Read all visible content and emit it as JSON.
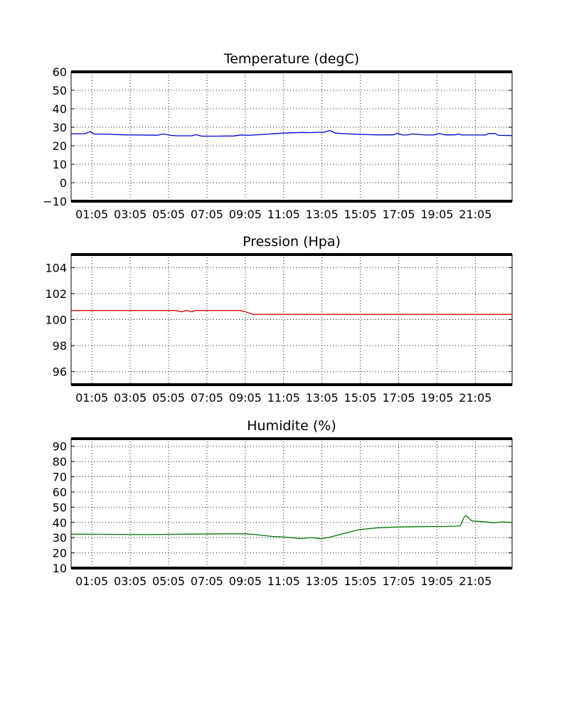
{
  "chart_data": [
    {
      "type": "line",
      "title": "Temperature (degC)",
      "ylim": [
        -10,
        60
      ],
      "yticks": [
        -10,
        0,
        10,
        20,
        30,
        40,
        50,
        60
      ],
      "ytick_labels": [
        "−10",
        "0",
        "10",
        "20",
        "30",
        "40",
        "50",
        "60"
      ],
      "xlim": [
        0,
        23
      ],
      "xticks": [
        1.083,
        3.083,
        5.083,
        7.083,
        9.083,
        11.083,
        13.083,
        15.083,
        17.083,
        19.083,
        21.083
      ],
      "xtick_labels": [
        "01:05",
        "03:05",
        "05:05",
        "07:05",
        "09:05",
        "11:05",
        "13:05",
        "15:05",
        "17:05",
        "19:05",
        "21:05"
      ],
      "grid": true,
      "color": "#0000cc",
      "series": [
        {
          "x": [
            0,
            0.7,
            1.0,
            1.2,
            1.8,
            2.8,
            3.5,
            4.5,
            4.8,
            5.2,
            5.5,
            5.8,
            6.3,
            6.5,
            6.8,
            7.5,
            8.5,
            8.9,
            9.2,
            10,
            11,
            12,
            12.5,
            13.2,
            13.5,
            13.8,
            14.5,
            15.5,
            16,
            16.5,
            16.8,
            17.0,
            17.3,
            17.5,
            17.8,
            18.5,
            18.9,
            19.2,
            19.5,
            20.0,
            20.2,
            20.4,
            21,
            21.6,
            21.8,
            22.1,
            22.3,
            23
          ],
          "y": [
            26.5,
            26.5,
            27.6,
            26.3,
            26.3,
            25.9,
            25.8,
            25.7,
            26.4,
            25.6,
            25.4,
            25.4,
            25.4,
            26.0,
            25.2,
            25.2,
            25.3,
            25.9,
            25.6,
            26.1,
            26.8,
            27.2,
            27.1,
            27.3,
            28.3,
            26.8,
            26.4,
            26.0,
            25.9,
            25.9,
            25.9,
            26.7,
            25.8,
            25.8,
            26.4,
            25.8,
            25.8,
            26.6,
            25.9,
            25.9,
            26.3,
            25.8,
            25.8,
            25.8,
            26.6,
            26.6,
            25.6,
            25.5
          ]
        }
      ]
    },
    {
      "type": "line",
      "title": "Pression (Hpa)",
      "ylim": [
        95,
        105
      ],
      "yticks": [
        96,
        98,
        100,
        102,
        104
      ],
      "ytick_labels": [
        "96",
        "98",
        "100",
        "102",
        "104"
      ],
      "xlim": [
        0,
        23
      ],
      "xticks": [
        1.083,
        3.083,
        5.083,
        7.083,
        9.083,
        11.083,
        13.083,
        15.083,
        17.083,
        19.083,
        21.083
      ],
      "xtick_labels": [
        "01:05",
        "03:05",
        "05:05",
        "07:05",
        "09:05",
        "11:05",
        "13:05",
        "15:05",
        "17:05",
        "19:05",
        "21:05"
      ],
      "grid": true,
      "color": "#dd0000",
      "series": [
        {
          "x": [
            0,
            5.4,
            5.8,
            6.0,
            6.3,
            6.5,
            8.8,
            9.1,
            9.5,
            23
          ],
          "y": [
            100.7,
            100.7,
            100.6,
            100.7,
            100.6,
            100.7,
            100.7,
            100.6,
            100.4,
            100.4
          ]
        }
      ]
    },
    {
      "type": "line",
      "title": "Humidite (%)",
      "ylim": [
        10,
        95
      ],
      "yticks": [
        10,
        20,
        30,
        40,
        50,
        60,
        70,
        80,
        90
      ],
      "ytick_labels": [
        "10",
        "20",
        "30",
        "40",
        "50",
        "60",
        "70",
        "80",
        "90"
      ],
      "xlim": [
        0,
        23
      ],
      "xticks": [
        1.083,
        3.083,
        5.083,
        7.083,
        9.083,
        11.083,
        13.083,
        15.083,
        17.083,
        19.083,
        21.083
      ],
      "xtick_labels": [
        "01:05",
        "03:05",
        "05:05",
        "07:05",
        "09:05",
        "11:05",
        "13:05",
        "15:05",
        "17:05",
        "19:05",
        "21:05"
      ],
      "grid": true,
      "color": "#007700",
      "series": [
        {
          "x": [
            0,
            2,
            4,
            5,
            6,
            8,
            9,
            9.5,
            10,
            10.5,
            11,
            11.5,
            12,
            12.5,
            13,
            13.5,
            14,
            15,
            16,
            17,
            18,
            19,
            19.5,
            20,
            20.3,
            20.5,
            20.6,
            20.9,
            21.5,
            22,
            22.5,
            23
          ],
          "y": [
            32.3,
            32.2,
            32.0,
            32.2,
            32.3,
            32.5,
            32.5,
            32.2,
            31.5,
            30.8,
            30.5,
            30.0,
            29.4,
            30.1,
            29.3,
            30.3,
            32.0,
            35.2,
            36.5,
            37.0,
            37.2,
            37.3,
            37.3,
            37.5,
            37.8,
            43.5,
            44.5,
            41.0,
            40.5,
            39.8,
            40.3,
            40.0
          ]
        }
      ]
    }
  ]
}
